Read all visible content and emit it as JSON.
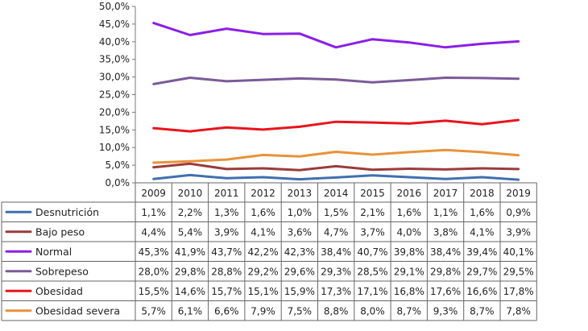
{
  "chart_data": {
    "type": "line",
    "title": "",
    "xlabel": "",
    "ylabel": "",
    "ylim": [
      0,
      50
    ],
    "y_ticks": [
      "0,0%",
      "5,0%",
      "10,0%",
      "15,0%",
      "20,0%",
      "25,0%",
      "30,0%",
      "35,0%",
      "40,0%",
      "45,0%",
      "50,0%"
    ],
    "grid": false,
    "legend": "data-table",
    "x": [
      "2009",
      "2010",
      "2011",
      "2012",
      "2013",
      "2014",
      "2015",
      "2016",
      "2017",
      "2018",
      "2019"
    ],
    "series": [
      {
        "name": "Desnutrición",
        "color": "#3f6fb0",
        "values": [
          1.1,
          2.2,
          1.3,
          1.6,
          1.0,
          1.5,
          2.1,
          1.6,
          1.1,
          1.6,
          0.9
        ],
        "labels": [
          "1,1%",
          "2,2%",
          "1,3%",
          "1,6%",
          "1,0%",
          "1,5%",
          "2,1%",
          "1,6%",
          "1,1%",
          "1,6%",
          "0,9%"
        ]
      },
      {
        "name": "Bajo peso",
        "color": "#9b3b3b",
        "values": [
          4.4,
          5.4,
          3.9,
          4.1,
          3.6,
          4.7,
          3.7,
          4.0,
          3.8,
          4.1,
          3.9
        ],
        "labels": [
          "4,4%",
          "5,4%",
          "3,9%",
          "4,1%",
          "3,6%",
          "4,7%",
          "3,7%",
          "4,0%",
          "3,8%",
          "4,1%",
          "3,9%"
        ]
      },
      {
        "name": "Normal",
        "color": "#8b1ee8",
        "values": [
          45.3,
          41.9,
          43.7,
          42.2,
          42.3,
          38.4,
          40.7,
          39.8,
          38.4,
          39.4,
          40.1
        ],
        "labels": [
          "45,3%",
          "41,9%",
          "43,7%",
          "42,2%",
          "42,3%",
          "38,4%",
          "40,7%",
          "39,8%",
          "38,4%",
          "39,4%",
          "40,1%"
        ]
      },
      {
        "name": "Sobrepeso",
        "color": "#7b5a99",
        "values": [
          28.0,
          29.8,
          28.8,
          29.2,
          29.6,
          29.3,
          28.5,
          29.1,
          29.8,
          29.7,
          29.5
        ],
        "labels": [
          "28,0%",
          "29,8%",
          "28,8%",
          "29,2%",
          "29,6%",
          "29,3%",
          "28,5%",
          "29,1%",
          "29,8%",
          "29,7%",
          "29,5%"
        ]
      },
      {
        "name": "Obesidad",
        "color": "#e8141c",
        "values": [
          15.5,
          14.6,
          15.7,
          15.1,
          15.9,
          17.3,
          17.1,
          16.8,
          17.6,
          16.6,
          17.8
        ],
        "labels": [
          "15,5%",
          "14,6%",
          "15,7%",
          "15,1%",
          "15,9%",
          "17,3%",
          "17,1%",
          "16,8%",
          "17,6%",
          "16,6%",
          "17,8%"
        ]
      },
      {
        "name": "Obesidad severa",
        "color": "#e8923a",
        "values": [
          5.7,
          6.1,
          6.6,
          7.9,
          7.5,
          8.8,
          8.0,
          8.7,
          9.3,
          8.7,
          7.8
        ],
        "labels": [
          "5,7%",
          "6,1%",
          "6,6%",
          "7,9%",
          "7,5%",
          "8,8%",
          "8,0%",
          "8,7%",
          "9,3%",
          "8,7%",
          "7,8%"
        ]
      }
    ]
  }
}
